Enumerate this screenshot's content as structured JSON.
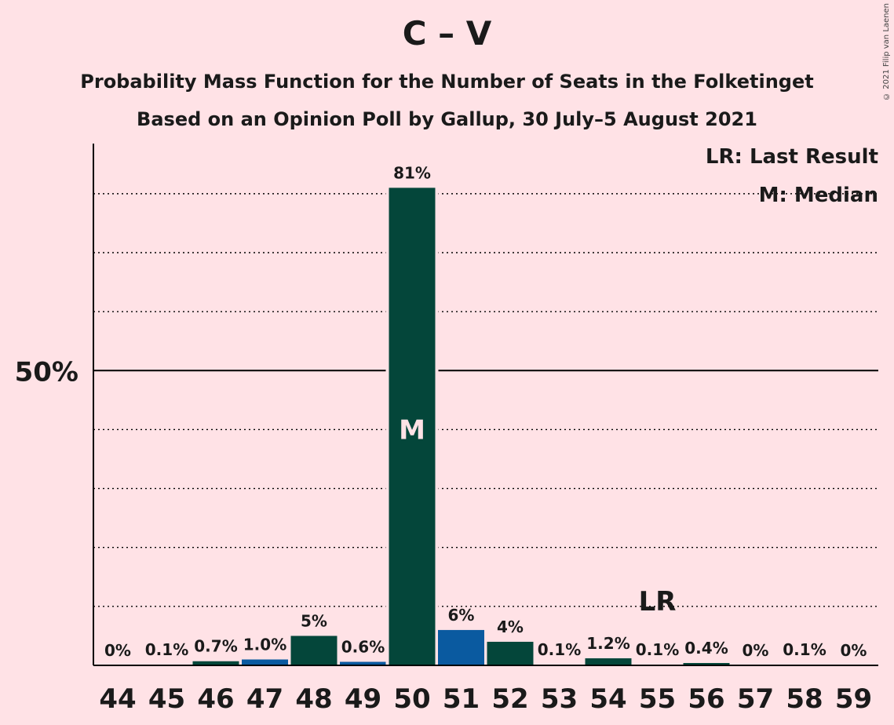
{
  "header": {
    "title": "C – V",
    "subtitle_1": "Probability Mass Function for the Number of Seats in the Folketinget",
    "subtitle_2": "Based on an Opinion Poll by Gallup, 30 July–5 August 2021",
    "copyright": "© 2021 Filip van Laenen"
  },
  "legend": {
    "last_result": "LR: Last Result",
    "median": "M: Median"
  },
  "colors": {
    "background": "#ffe2e6",
    "bar_primary": "#04463a",
    "bar_secondary": "#0a5aa0",
    "axis": "#000000"
  },
  "chart_data": {
    "type": "bar",
    "categories": [
      "44",
      "45",
      "46",
      "47",
      "48",
      "49",
      "50",
      "51",
      "52",
      "53",
      "54",
      "55",
      "56",
      "57",
      "58",
      "59"
    ],
    "values": [
      0,
      0.1,
      0.7,
      1.0,
      5,
      0.6,
      81,
      6,
      4,
      0.1,
      1.2,
      0.1,
      0.4,
      0,
      0.1,
      0
    ],
    "value_labels": [
      "0%",
      "0.1%",
      "0.7%",
      "1.0%",
      "5%",
      "0.6%",
      "81%",
      "6%",
      "4%",
      "0.1%",
      "1.2%",
      "0.1%",
      "0.4%",
      "0%",
      "0.1%",
      "0%"
    ],
    "bar_colors": [
      "primary",
      "primary",
      "primary",
      "secondary",
      "primary",
      "secondary",
      "primary",
      "secondary",
      "primary",
      "primary",
      "primary",
      "primary",
      "primary",
      "primary",
      "primary",
      "primary"
    ],
    "median_category": "50",
    "median_marker": "M",
    "last_result_category": "55",
    "last_result_marker": "LR",
    "ylim": [
      0,
      88.5
    ],
    "y_tick_label": "50%",
    "y_tick_value": 50,
    "gridlines_dotted": [
      10,
      20,
      30,
      40,
      60,
      70,
      80
    ],
    "gridline_solid": 50
  }
}
